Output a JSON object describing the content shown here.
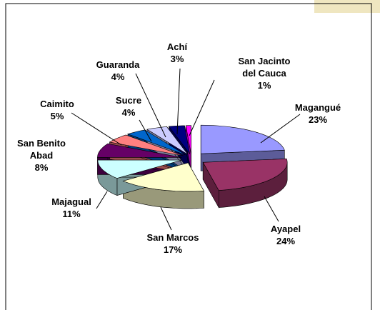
{
  "chart_data": {
    "type": "pie3d",
    "categories": [
      "Magangué",
      "Ayapel",
      "San Marcos",
      "Majagual",
      "San Benito Abad",
      "Caimito",
      "Sucre",
      "Guaranda",
      "Achí",
      "San Jacinto del Cauca"
    ],
    "values": [
      23,
      24,
      17,
      11,
      8,
      5,
      4,
      4,
      3,
      1
    ],
    "value_labels": [
      "23%",
      "24%",
      "17%",
      "11%",
      "8%",
      "5%",
      "4%",
      "4%",
      "3%",
      "1%"
    ],
    "colors": [
      "#9999ff",
      "#993366",
      "#ffffcc",
      "#ccffff",
      "#660066",
      "#ff8080",
      "#0066cc",
      "#ccccff",
      "#000080",
      "#ff00ff"
    ]
  }
}
